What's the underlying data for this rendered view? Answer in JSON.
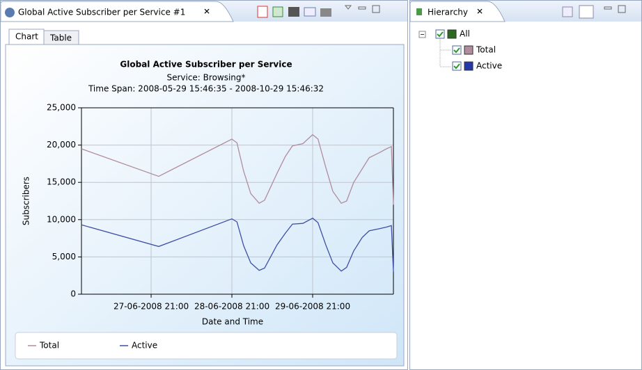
{
  "editor_tab": {
    "title": "Global Active Subscriber per Service #1"
  },
  "sub_tabs": [
    "Chart",
    "Table"
  ],
  "chart_data": {
    "type": "line",
    "title": "Global Active Subscriber per Service",
    "subtitle": "Service: Browsing*",
    "time_span": "Time Span: 2008-05-29 15:46:35 - 2008-10-29 15:46:32",
    "x_label": "Date and Time",
    "y_label": "Subscribers",
    "x": [
      "27-06-2008 00:18",
      "27-06-2008 23:15",
      "28-06-2008 21:00",
      "28-06-2008 22:30",
      "29-06-2008 00:30",
      "29-06-2008 02:36",
      "29-06-2008 05:06",
      "29-06-2008 06:42",
      "29-06-2008 10:24",
      "29-06-2008 12:54",
      "29-06-2008 15:00",
      "29-06-2008 18:06",
      "29-06-2008 21:00",
      "29-06-2008 22:36",
      "30-06-2008 00:54",
      "30-06-2008 03:00",
      "30-06-2008 05:30",
      "30-06-2008 07:06",
      "30-06-2008 09:12",
      "30-06-2008 11:42",
      "30-06-2008 13:48",
      "30-06-2008 16:54",
      "30-06-2008 18:54",
      "30-06-2008 20:24",
      "30-06-2008 21:00"
    ],
    "series": [
      {
        "name": "Total",
        "color": "#b08c9c",
        "values": [
          19500,
          15800,
          20800,
          20300,
          16500,
          13500,
          12200,
          12600,
          16200,
          18500,
          19900,
          20200,
          21400,
          20800,
          17000,
          13800,
          12200,
          12500,
          15000,
          16800,
          18300,
          19000,
          19500,
          19800,
          12000
        ]
      },
      {
        "name": "Active",
        "color": "#3c4ea8",
        "values": [
          9300,
          6400,
          10100,
          9700,
          6500,
          4200,
          3200,
          3500,
          6600,
          8200,
          9400,
          9500,
          10200,
          9600,
          6600,
          4200,
          3100,
          3600,
          5800,
          7600,
          8500,
          8800,
          9000,
          9200,
          3000
        ]
      }
    ],
    "xlim": [
      "27-06-2008 00:18",
      "30-06-2008 21:00"
    ],
    "xticks": [
      "27-06-2008 21:00",
      "28-06-2008 21:00",
      "29-06-2008 21:00"
    ],
    "ylim": [
      0,
      25000
    ],
    "yticks": [
      0,
      {
        "value": 5000,
        "label": "5,000"
      },
      {
        "value": 10000,
        "label": "10,000"
      },
      {
        "value": 15000,
        "label": "15,000"
      },
      {
        "value": 20000,
        "label": "20,000"
      },
      {
        "value": 25000,
        "label": "25,000"
      }
    ],
    "grid": true
  },
  "hierarchy": {
    "title": "Hierarchy",
    "nodes": [
      {
        "label": "All",
        "color": "#2d6a1e"
      },
      {
        "label": "Total",
        "color": "#b08c9c"
      },
      {
        "label": "Active",
        "color": "#2438a8"
      }
    ]
  }
}
